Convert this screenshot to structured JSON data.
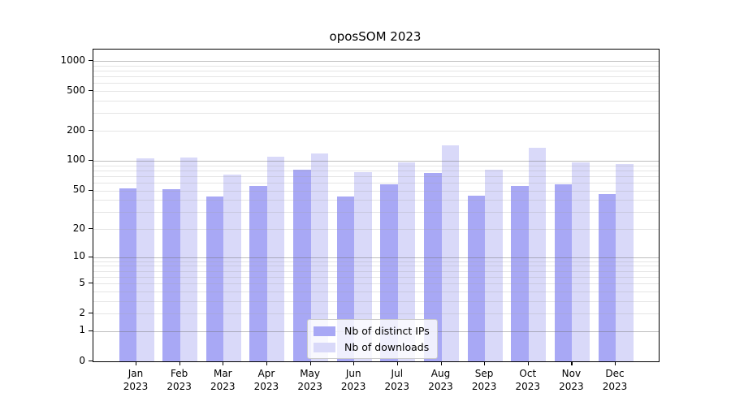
{
  "title": "oposSOM 2023",
  "legend": {
    "items": [
      {
        "label": "Nb of distinct IPs",
        "color": "#a8a8f5"
      },
      {
        "label": "Nb of downloads",
        "color": "#d9d9f9"
      }
    ]
  },
  "colors": {
    "bar_distinct_ips": "#a8a8f5",
    "bar_downloads": "#d9d9f9",
    "grid_major": "rgba(110,110,110,0.45)",
    "grid_minor": "rgba(160,160,160,0.28)",
    "axis": "#000000"
  },
  "chart_data": {
    "type": "bar",
    "title": "oposSOM 2023",
    "categories": [
      "Jan 2023",
      "Feb 2023",
      "Mar 2023",
      "Apr 2023",
      "May 2023",
      "Jun 2023",
      "Jul 2023",
      "Aug 2023",
      "Sep 2023",
      "Oct 2023",
      "Nov 2023",
      "Dec 2023"
    ],
    "series": [
      {
        "name": "Nb of distinct IPs",
        "color": "#a8a8f5",
        "values": [
          52,
          51,
          43,
          55,
          81,
          43,
          58,
          75,
          44,
          56,
          58,
          46
        ]
      },
      {
        "name": "Nb of downloads",
        "color": "#d9d9f9",
        "values": [
          105,
          108,
          72,
          110,
          118,
          77,
          96,
          144,
          81,
          135,
          96,
          93
        ]
      }
    ],
    "xlabel": "",
    "ylabel": "",
    "y_axis": {
      "scale": "log10(1+value)",
      "tick_values": [
        1000,
        500,
        200,
        100,
        50,
        20,
        10,
        5,
        2,
        1,
        0
      ],
      "major_gridlines": [
        1,
        10,
        100,
        1000
      ],
      "minor_gridline_mantissas": [
        2,
        3,
        4,
        5,
        6,
        7,
        8,
        9
      ],
      "ylim": [
        0,
        1300
      ]
    },
    "grid": "on",
    "legend_position": "inside-bottom-center"
  }
}
